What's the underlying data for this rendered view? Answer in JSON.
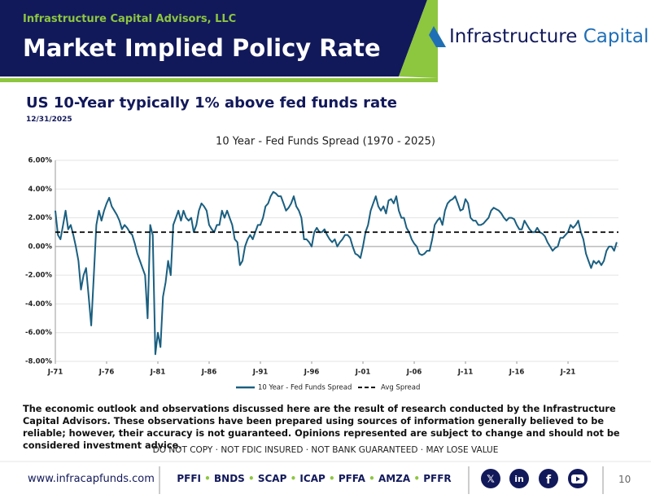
{
  "header": {
    "firm": "Infrastructure Capital Advisors, LLC",
    "title": "Market Implied Policy Rate"
  },
  "logo": {
    "name": "Infrastructure",
    "accent": "Capital"
  },
  "page": {
    "subtitle": "US 10-Year typically 1% above fed funds rate",
    "date": "12/31/2025",
    "disclaimer": "The economic outlook and observations discussed here are the result of research conducted by the Infrastructure Capital Advisors. These observations have been prepared using sources of information generally believed to be reliable; however, their accuracy is not guaranteed. Opinions represented are subject to change and should not be considered investment advice."
  },
  "footer": {
    "notice": "DO NOT COPY · NOT FDIC INSURED · NOT BANK GUARANTEED · MAY LOSE VALUE",
    "website": "www.infracapfunds.com",
    "tickers": [
      "PFFI",
      "BNDS",
      "SCAP",
      "ICAP",
      "PFFA",
      "AMZA",
      "PFFR"
    ],
    "page_number": "10"
  },
  "chart_data": {
    "type": "line",
    "title": "10 Year - Fed Funds Spread (1970 - 2025)",
    "x": [
      "1971-01",
      "1971-04",
      "1971-07",
      "1971-10",
      "1972-01",
      "1972-04",
      "1972-07",
      "1972-10",
      "1973-01",
      "1973-04",
      "1973-07",
      "1973-10",
      "1974-01",
      "1974-04",
      "1974-07",
      "1974-10",
      "1975-01",
      "1975-04",
      "1975-07",
      "1975-10",
      "1976-01",
      "1976-04",
      "1976-07",
      "1976-10",
      "1977-01",
      "1977-04",
      "1977-07",
      "1977-10",
      "1978-01",
      "1978-04",
      "1978-07",
      "1978-10",
      "1979-01",
      "1979-04",
      "1979-07",
      "1979-10",
      "1980-01",
      "1980-04",
      "1980-07",
      "1980-10",
      "1981-01",
      "1981-04",
      "1981-07",
      "1981-10",
      "1982-01",
      "1982-04",
      "1982-07",
      "1982-10",
      "1983-01",
      "1983-04",
      "1983-07",
      "1983-10",
      "1984-01",
      "1984-04",
      "1984-07",
      "1984-10",
      "1985-01",
      "1985-04",
      "1985-07",
      "1985-10",
      "1986-01",
      "1986-04",
      "1986-07",
      "1986-10",
      "1987-01",
      "1987-04",
      "1987-07",
      "1987-10",
      "1988-01",
      "1988-04",
      "1988-07",
      "1988-10",
      "1989-01",
      "1989-04",
      "1989-07",
      "1989-10",
      "1990-01",
      "1990-04",
      "1990-07",
      "1990-10",
      "1991-01",
      "1991-04",
      "1991-07",
      "1991-10",
      "1992-01",
      "1992-04",
      "1992-07",
      "1992-10",
      "1993-01",
      "1993-04",
      "1993-07",
      "1993-10",
      "1994-01",
      "1994-04",
      "1994-07",
      "1994-10",
      "1995-01",
      "1995-04",
      "1995-07",
      "1995-10",
      "1996-01",
      "1996-04",
      "1996-07",
      "1996-10",
      "1997-01",
      "1997-04",
      "1997-07",
      "1997-10",
      "1998-01",
      "1998-04",
      "1998-07",
      "1998-10",
      "1999-01",
      "1999-04",
      "1999-07",
      "1999-10",
      "2000-01",
      "2000-04",
      "2000-07",
      "2000-10",
      "2001-01",
      "2001-04",
      "2001-07",
      "2001-10",
      "2002-01",
      "2002-04",
      "2002-07",
      "2002-10",
      "2003-01",
      "2003-04",
      "2003-07",
      "2003-10",
      "2004-01",
      "2004-04",
      "2004-07",
      "2004-10",
      "2005-01",
      "2005-04",
      "2005-07",
      "2005-10",
      "2006-01",
      "2006-04",
      "2006-07",
      "2006-10",
      "2007-01",
      "2007-04",
      "2007-07",
      "2007-10",
      "2008-01",
      "2008-04",
      "2008-07",
      "2008-10",
      "2009-01",
      "2009-04",
      "2009-07",
      "2009-10",
      "2010-01",
      "2010-04",
      "2010-07",
      "2010-10",
      "2011-01",
      "2011-04",
      "2011-07",
      "2011-10",
      "2012-01",
      "2012-04",
      "2012-07",
      "2012-10",
      "2013-01",
      "2013-04",
      "2013-07",
      "2013-10",
      "2014-01",
      "2014-04",
      "2014-07",
      "2014-10",
      "2015-01",
      "2015-04",
      "2015-07",
      "2015-10",
      "2016-01",
      "2016-04",
      "2016-07",
      "2016-10",
      "2017-01",
      "2017-04",
      "2017-07",
      "2017-10",
      "2018-01",
      "2018-04",
      "2018-07",
      "2018-10",
      "2019-01",
      "2019-04",
      "2019-07",
      "2019-10",
      "2020-01",
      "2020-04",
      "2020-07",
      "2020-10",
      "2021-01",
      "2021-04",
      "2021-07",
      "2021-10",
      "2022-01",
      "2022-04",
      "2022-07",
      "2022-10",
      "2023-01",
      "2023-04",
      "2023-07",
      "2023-10",
      "2024-01",
      "2024-04",
      "2024-07",
      "2024-10",
      "2025-01",
      "2025-04",
      "2025-07",
      "2025-10"
    ],
    "series": [
      {
        "name": "10 Year - Fed Funds Spread",
        "color": "#1a5f80",
        "values": [
          2.5,
          0.8,
          0.5,
          1.5,
          2.5,
          1.2,
          1.5,
          0.8,
          0.0,
          -1.0,
          -3.0,
          -2.0,
          -1.5,
          -3.5,
          -5.5,
          -2.0,
          1.5,
          2.5,
          1.8,
          2.5,
          3.0,
          3.4,
          2.8,
          2.5,
          2.2,
          1.8,
          1.2,
          1.5,
          1.3,
          1.0,
          0.8,
          0.2,
          -0.5,
          -1.0,
          -1.5,
          -2.0,
          -5.0,
          1.5,
          0.8,
          -7.5,
          -6.0,
          -7.0,
          -3.5,
          -2.5,
          -1.0,
          -2.0,
          1.5,
          2.0,
          2.5,
          1.8,
          2.5,
          2.0,
          1.8,
          2.0,
          1.0,
          1.5,
          2.5,
          3.0,
          2.8,
          2.5,
          1.5,
          1.2,
          1.0,
          1.5,
          1.5,
          2.5,
          2.0,
          2.5,
          2.0,
          1.5,
          0.5,
          0.3,
          -1.3,
          -1.0,
          0.0,
          0.5,
          0.8,
          0.5,
          1.0,
          1.5,
          1.5,
          2.0,
          2.8,
          3.0,
          3.5,
          3.8,
          3.7,
          3.5,
          3.5,
          3.0,
          2.5,
          2.7,
          3.0,
          3.5,
          2.8,
          2.5,
          2.0,
          0.5,
          0.5,
          0.3,
          0.0,
          1.0,
          1.3,
          1.0,
          1.0,
          1.2,
          0.8,
          0.5,
          0.3,
          0.5,
          0.0,
          0.3,
          0.5,
          0.8,
          0.8,
          0.6,
          0.0,
          -0.5,
          -0.6,
          -0.8,
          0.0,
          1.0,
          1.5,
          2.5,
          3.0,
          3.5,
          2.8,
          2.5,
          2.8,
          2.3,
          3.2,
          3.3,
          3.0,
          3.5,
          2.5,
          2.0,
          2.0,
          1.3,
          1.0,
          0.5,
          0.2,
          0.0,
          -0.5,
          -0.6,
          -0.5,
          -0.3,
          -0.3,
          0.5,
          1.5,
          1.8,
          2.0,
          1.5,
          2.5,
          3.0,
          3.2,
          3.3,
          3.5,
          3.0,
          2.5,
          2.6,
          3.3,
          3.0,
          2.0,
          1.8,
          1.8,
          1.5,
          1.5,
          1.6,
          1.8,
          2.0,
          2.5,
          2.7,
          2.6,
          2.5,
          2.3,
          2.0,
          1.8,
          2.0,
          2.0,
          1.9,
          1.5,
          1.2,
          1.2,
          1.8,
          1.5,
          1.2,
          1.0,
          1.0,
          1.3,
          1.0,
          0.9,
          0.7,
          0.3,
          0.0,
          -0.3,
          -0.1,
          0.0,
          0.6,
          0.6,
          0.8,
          1.0,
          1.5,
          1.3,
          1.5,
          1.8,
          1.0,
          0.5,
          -0.5,
          -1.0,
          -1.5,
          -1.0,
          -1.2,
          -1.0,
          -1.3,
          -1.0,
          -0.3,
          0.0,
          0.0,
          -0.3,
          0.3
        ]
      }
    ],
    "reference_lines": [
      {
        "name": "Avg Spread",
        "value": 1.0,
        "color": "#000000",
        "dashed": true
      }
    ],
    "xlim": [
      "1971-01",
      "2025-12"
    ],
    "xticks": [
      {
        "value": "1971-01",
        "label": "J-71"
      },
      {
        "value": "1976-01",
        "label": "J-76"
      },
      {
        "value": "1981-01",
        "label": "J-81"
      },
      {
        "value": "1986-01",
        "label": "J-86"
      },
      {
        "value": "1991-01",
        "label": "J-91"
      },
      {
        "value": "1996-01",
        "label": "J-96"
      },
      {
        "value": "2001-01",
        "label": "J-01"
      },
      {
        "value": "2006-01",
        "label": "J-06"
      },
      {
        "value": "2011-01",
        "label": "J-11"
      },
      {
        "value": "2016-01",
        "label": "J-16"
      },
      {
        "value": "2021-01",
        "label": "J-21"
      }
    ],
    "ylim": [
      -8,
      6
    ],
    "yticks": [
      {
        "value": -8,
        "label": "-8.00%"
      },
      {
        "value": -6,
        "label": "-6.00%"
      },
      {
        "value": -4,
        "label": "-4.00%"
      },
      {
        "value": -2,
        "label": "-2.00%"
      },
      {
        "value": 0,
        "label": "0.00%"
      },
      {
        "value": 2,
        "label": "2.00%"
      },
      {
        "value": 4,
        "label": "4.00%"
      },
      {
        "value": 6,
        "label": "6.00%"
      }
    ],
    "grid": true,
    "legend": "bottom"
  }
}
